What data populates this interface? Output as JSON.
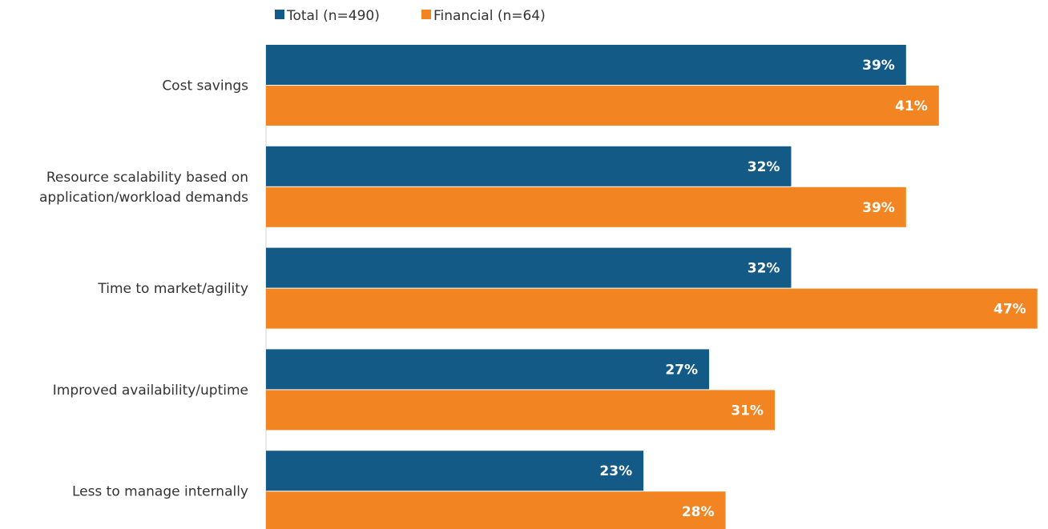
{
  "chart_data": {
    "type": "bar",
    "orientation": "horizontal",
    "categories": [
      [
        "Cost savings"
      ],
      [
        "Resource scalability based on",
        "application/workload demands"
      ],
      [
        "Time to market/agility"
      ],
      [
        "Improved availability/uptime"
      ],
      [
        "Less to manage internally"
      ]
    ],
    "series": [
      {
        "name": "Total (n=490)",
        "color": "#135a87",
        "values": [
          39,
          32,
          32,
          27,
          23
        ],
        "labels": [
          "39%",
          "32%",
          "32%",
          "27%",
          "23%"
        ]
      },
      {
        "name": "Financial (n=64)",
        "color": "#f28522",
        "values": [
          41,
          39,
          47,
          31,
          28
        ],
        "labels": [
          "41%",
          "39%",
          "47%",
          "31%",
          "28%"
        ]
      }
    ],
    "title": "",
    "xlabel": "",
    "ylabel": "",
    "xlim": [
      0,
      47.6
    ],
    "grid": false,
    "legend_position": "top"
  }
}
